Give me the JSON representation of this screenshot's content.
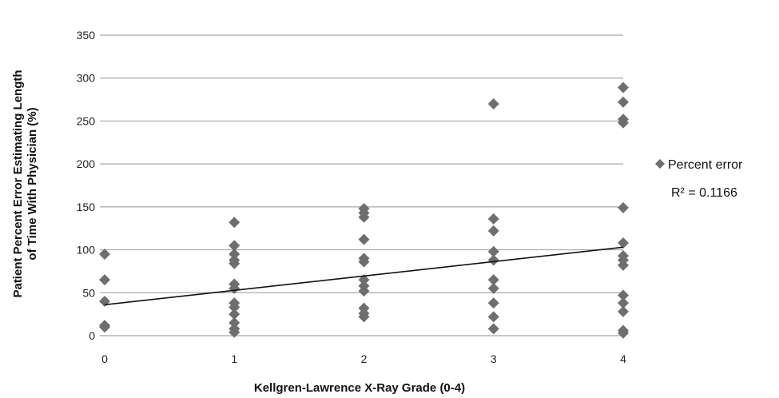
{
  "chart_data": {
    "type": "scatter",
    "title": "",
    "xlabel": "Kellgren-Lawrence X-Ray Grade (0-4)",
    "ylabel_line1": "Patient Percent Error Estimating Length",
    "ylabel_line2": "of Time With Physician (%)",
    "xlim": [
      0,
      4
    ],
    "ylim": [
      0,
      350
    ],
    "xticks": [
      "0",
      "1",
      "2",
      "3",
      "4"
    ],
    "yticks": [
      "0",
      "50",
      "100",
      "150",
      "200",
      "250",
      "300",
      "350"
    ],
    "grid": "horizontal",
    "legend_position": "right",
    "series": [
      {
        "name": "Percent error",
        "color": "#6e6e6e",
        "marker": "diamond",
        "points": [
          [
            0,
            95
          ],
          [
            0,
            65
          ],
          [
            0,
            40
          ],
          [
            0,
            12
          ],
          [
            0,
            10
          ],
          [
            1,
            132
          ],
          [
            1,
            105
          ],
          [
            1,
            95
          ],
          [
            1,
            88
          ],
          [
            1,
            84
          ],
          [
            1,
            60
          ],
          [
            1,
            55
          ],
          [
            1,
            38
          ],
          [
            1,
            33
          ],
          [
            1,
            25
          ],
          [
            1,
            15
          ],
          [
            1,
            8
          ],
          [
            1,
            4
          ],
          [
            2,
            148
          ],
          [
            2,
            143
          ],
          [
            2,
            138
          ],
          [
            2,
            112
          ],
          [
            2,
            90
          ],
          [
            2,
            86
          ],
          [
            2,
            65
          ],
          [
            2,
            58
          ],
          [
            2,
            52
          ],
          [
            2,
            32
          ],
          [
            2,
            26
          ],
          [
            2,
            22
          ],
          [
            3,
            270
          ],
          [
            3,
            136
          ],
          [
            3,
            122
          ],
          [
            3,
            98
          ],
          [
            3,
            88
          ],
          [
            3,
            65
          ],
          [
            3,
            55
          ],
          [
            3,
            38
          ],
          [
            3,
            22
          ],
          [
            3,
            8
          ],
          [
            4,
            289
          ],
          [
            4,
            272
          ],
          [
            4,
            252
          ],
          [
            4,
            248
          ],
          [
            4,
            149
          ],
          [
            4,
            108
          ],
          [
            4,
            93
          ],
          [
            4,
            88
          ],
          [
            4,
            82
          ],
          [
            4,
            47
          ],
          [
            4,
            38
          ],
          [
            4,
            28
          ],
          [
            4,
            6
          ],
          [
            4,
            3
          ]
        ]
      }
    ],
    "trendline": {
      "x": [
        0,
        4
      ],
      "y": [
        36,
        103
      ],
      "color": "#111111"
    },
    "r_squared_label": "R² = 0.1166"
  }
}
